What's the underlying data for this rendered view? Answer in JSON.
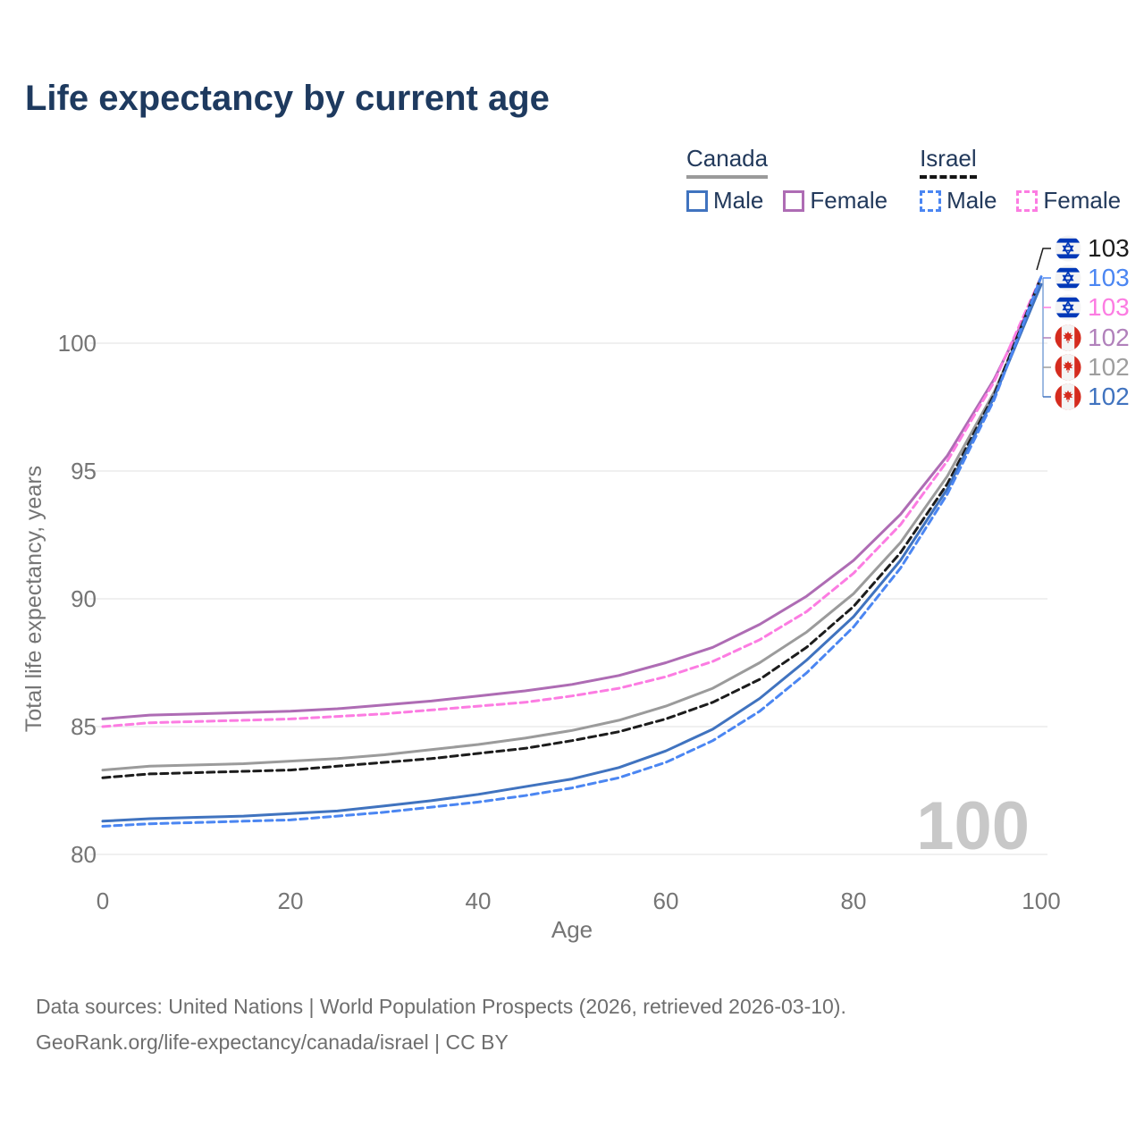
{
  "title": "Life expectancy by current age",
  "legend": {
    "groups": [
      {
        "label": "Canada",
        "line_style": "solid",
        "underline_color": "#9a9a9a",
        "items": [
          {
            "label": "Male",
            "color": "#4073bf"
          },
          {
            "label": "Female",
            "color": "#ae6cb4"
          }
        ]
      },
      {
        "label": "Israel",
        "line_style": "dashed",
        "underline_color": "#151515",
        "items": [
          {
            "label": "Male",
            "color": "#4b86f2"
          },
          {
            "label": "Female",
            "color": "#fc7ce2"
          }
        ]
      }
    ]
  },
  "chart_data": {
    "type": "line",
    "title": "Life expectancy by current age",
    "x_label": "Age",
    "y_label": "Total life expectancy, years",
    "x_ticks": [
      0,
      20,
      40,
      60,
      80,
      100
    ],
    "y_ticks": [
      80,
      85,
      90,
      95,
      100
    ],
    "xlim": [
      0,
      100
    ],
    "ylim": [
      80,
      103
    ],
    "grid": "horizontal",
    "legend_position": "top-right",
    "watermark": "100",
    "x": [
      0,
      5,
      10,
      15,
      20,
      25,
      30,
      35,
      40,
      45,
      50,
      55,
      60,
      65,
      70,
      75,
      80,
      85,
      90,
      95,
      100
    ],
    "series": [
      {
        "id": "canada-female",
        "name": "Canada Female",
        "country": "Canada",
        "style": "solid",
        "color": "#ae6cb4",
        "values": [
          85.3,
          85.45,
          85.5,
          85.55,
          85.6,
          85.7,
          85.85,
          86.0,
          86.2,
          86.4,
          86.65,
          87.0,
          87.5,
          88.1,
          89.0,
          90.1,
          91.5,
          93.3,
          95.6,
          98.6,
          102.3
        ]
      },
      {
        "id": "israel-female",
        "name": "Israel Female",
        "country": "Israel",
        "style": "dashed",
        "color": "#fc7ce2",
        "values": [
          85.0,
          85.15,
          85.2,
          85.25,
          85.3,
          85.4,
          85.5,
          85.65,
          85.8,
          85.95,
          86.2,
          86.5,
          86.95,
          87.55,
          88.4,
          89.5,
          91.0,
          92.9,
          95.4,
          98.5,
          102.6
        ]
      },
      {
        "id": "canada-both",
        "name": "Canada",
        "country": "Canada",
        "style": "solid",
        "color": "#9b9b9b",
        "values": [
          83.3,
          83.45,
          83.5,
          83.55,
          83.65,
          83.75,
          83.9,
          84.1,
          84.3,
          84.55,
          84.85,
          85.25,
          85.8,
          86.5,
          87.5,
          88.7,
          90.2,
          92.2,
          94.8,
          98.1,
          102.3
        ]
      },
      {
        "id": "israel-both",
        "name": "Israel",
        "country": "Israel",
        "style": "dashed",
        "color": "#1c1c1c",
        "values": [
          83.0,
          83.15,
          83.2,
          83.25,
          83.3,
          83.45,
          83.6,
          83.75,
          83.95,
          84.15,
          84.45,
          84.8,
          85.3,
          85.95,
          86.85,
          88.1,
          89.7,
          91.8,
          94.5,
          98.0,
          102.6
        ]
      },
      {
        "id": "canada-male",
        "name": "Canada Male",
        "country": "Canada",
        "style": "solid",
        "color": "#4073bf",
        "values": [
          81.3,
          81.4,
          81.45,
          81.5,
          81.6,
          81.7,
          81.9,
          82.1,
          82.35,
          82.65,
          82.95,
          83.4,
          84.05,
          84.9,
          86.1,
          87.6,
          89.3,
          91.5,
          94.3,
          97.9,
          102.3
        ]
      },
      {
        "id": "israel-male",
        "name": "Israel Male",
        "country": "Israel",
        "style": "dashed",
        "color": "#4b86f2",
        "values": [
          81.1,
          81.2,
          81.25,
          81.3,
          81.35,
          81.5,
          81.65,
          81.85,
          82.05,
          82.3,
          82.6,
          83.0,
          83.6,
          84.45,
          85.6,
          87.1,
          88.9,
          91.2,
          94.1,
          97.8,
          102.6
        ]
      }
    ]
  },
  "end_labels": [
    {
      "flag": "israel",
      "value": "103",
      "color": "#1c1c1c"
    },
    {
      "flag": "israel",
      "value": "103",
      "color": "#4b86f2"
    },
    {
      "flag": "israel",
      "value": "103",
      "color": "#fc7ce2"
    },
    {
      "flag": "canada",
      "value": "102",
      "color": "#b181bb"
    },
    {
      "flag": "canada",
      "value": "102",
      "color": "#9e9e9e"
    },
    {
      "flag": "canada",
      "value": "102",
      "color": "#4073bf"
    }
  ],
  "footer": {
    "line1": "Data sources: United Nations | World Population Prospects (2026, retrieved 2026-03-10).",
    "line2": "GeoRank.org/life-expectancy/canada/israel | CC BY"
  },
  "colors": {
    "title_text": "#1e3a5f",
    "axis_text": "#757575",
    "gridline": "#ececec",
    "watermark": "#c8c8c8",
    "footer_text": "#6e6e6e",
    "israel_flag_blue": "#0038b8",
    "canada_flag_red": "#d52b1e"
  }
}
